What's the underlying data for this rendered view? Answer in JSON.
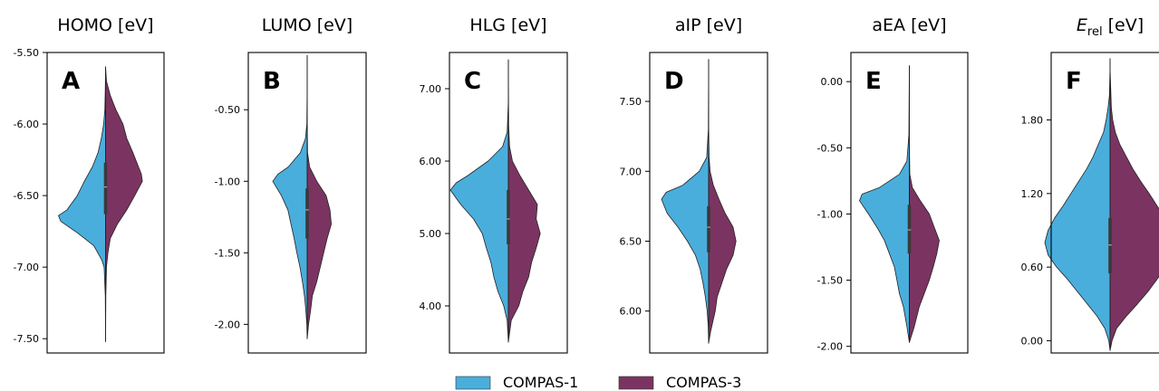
{
  "legend": {
    "placement": "bottom-center",
    "entries": [
      {
        "name": "COMPAS-1",
        "color": "#4aaedc"
      },
      {
        "name": "COMPAS-3",
        "color": "#7b3461"
      }
    ]
  },
  "chart_data": [
    {
      "type": "violin",
      "panel": "A",
      "title": "HOMO [eV]",
      "ylim": [
        -7.6,
        -5.5
      ],
      "yticks": [
        -5.5,
        -6.0,
        -6.5,
        -7.0,
        -7.5
      ],
      "yticklabels": [
        "-5.50",
        "-6.00",
        "-6.50",
        "-7.00",
        "-7.50"
      ],
      "median": -6.44,
      "iqr": [
        -6.63,
        -6.27
      ],
      "series": [
        {
          "name": "COMPAS-1",
          "profile": [
            [
              -7.52,
              0
            ],
            [
              -7.2,
              0.005
            ],
            [
              -7.0,
              0.03
            ],
            [
              -6.95,
              0.08
            ],
            [
              -6.85,
              0.25
            ],
            [
              -6.76,
              0.6
            ],
            [
              -6.68,
              0.95
            ],
            [
              -6.64,
              1.0
            ],
            [
              -6.6,
              0.82
            ],
            [
              -6.5,
              0.6
            ],
            [
              -6.4,
              0.45
            ],
            [
              -6.3,
              0.28
            ],
            [
              -6.2,
              0.16
            ],
            [
              -6.1,
              0.09
            ],
            [
              -6.0,
              0.04
            ],
            [
              -5.9,
              0.015
            ],
            [
              -5.75,
              0.005
            ],
            [
              -5.6,
              0
            ]
          ]
        },
        {
          "name": "COMPAS-3",
          "profile": [
            [
              -7.52,
              0
            ],
            [
              -7.2,
              0.005
            ],
            [
              -7.0,
              0.02
            ],
            [
              -6.9,
              0.05
            ],
            [
              -6.8,
              0.1
            ],
            [
              -6.7,
              0.25
            ],
            [
              -6.6,
              0.45
            ],
            [
              -6.5,
              0.62
            ],
            [
              -6.4,
              0.78
            ],
            [
              -6.35,
              0.76
            ],
            [
              -6.3,
              0.7
            ],
            [
              -6.2,
              0.58
            ],
            [
              -6.1,
              0.45
            ],
            [
              -6.0,
              0.37
            ],
            [
              -5.9,
              0.22
            ],
            [
              -5.8,
              0.1
            ],
            [
              -5.7,
              0.02
            ],
            [
              -5.6,
              0
            ]
          ]
        }
      ]
    },
    {
      "type": "violin",
      "panel": "B",
      "title": "LUMO [eV]",
      "ylim": [
        -2.2,
        -0.1
      ],
      "yticks": [
        -0.5,
        -1.0,
        -1.5,
        -2.0
      ],
      "yticklabels": [
        "-0.50",
        "-1.00",
        "-1.50",
        "-2.00"
      ],
      "median": -1.2,
      "iqr": [
        -1.4,
        -1.05
      ],
      "series": [
        {
          "name": "COMPAS-1",
          "profile": [
            [
              -2.1,
              0
            ],
            [
              -2.0,
              0.01
            ],
            [
              -1.9,
              0.04
            ],
            [
              -1.8,
              0.08
            ],
            [
              -1.7,
              0.14
            ],
            [
              -1.6,
              0.21
            ],
            [
              -1.5,
              0.3
            ],
            [
              -1.4,
              0.38
            ],
            [
              -1.3,
              0.47
            ],
            [
              -1.2,
              0.56
            ],
            [
              -1.1,
              0.75
            ],
            [
              -1.0,
              1.0
            ],
            [
              -0.95,
              0.85
            ],
            [
              -0.9,
              0.55
            ],
            [
              -0.8,
              0.2
            ],
            [
              -0.7,
              0.05
            ],
            [
              -0.6,
              0.01
            ],
            [
              -0.4,
              0.002
            ],
            [
              -0.12,
              0
            ]
          ]
        },
        {
          "name": "COMPAS-3",
          "profile": [
            [
              -2.1,
              0
            ],
            [
              -2.0,
              0.04
            ],
            [
              -1.9,
              0.1
            ],
            [
              -1.8,
              0.15
            ],
            [
              -1.7,
              0.28
            ],
            [
              -1.6,
              0.38
            ],
            [
              -1.5,
              0.48
            ],
            [
              -1.4,
              0.58
            ],
            [
              -1.3,
              0.7
            ],
            [
              -1.2,
              0.66
            ],
            [
              -1.1,
              0.55
            ],
            [
              -1.0,
              0.28
            ],
            [
              -0.9,
              0.07
            ],
            [
              -0.8,
              0.01
            ],
            [
              -0.6,
              0.002
            ],
            [
              -0.12,
              0
            ]
          ]
        }
      ]
    },
    {
      "type": "violin",
      "panel": "C",
      "title": "HLG [eV]",
      "ylim": [
        3.35,
        7.5
      ],
      "yticks": [
        7.0,
        6.0,
        5.0,
        4.0
      ],
      "yticklabels": [
        "7.00",
        "6.00",
        "5.00",
        "4.00"
      ],
      "median": 5.2,
      "iqr": [
        4.85,
        5.6
      ],
      "series": [
        {
          "name": "COMPAS-1",
          "profile": [
            [
              3.5,
              0
            ],
            [
              3.8,
              0.02
            ],
            [
              4.0,
              0.08
            ],
            [
              4.2,
              0.18
            ],
            [
              4.4,
              0.25
            ],
            [
              4.6,
              0.3
            ],
            [
              4.8,
              0.38
            ],
            [
              5.0,
              0.45
            ],
            [
              5.2,
              0.6
            ],
            [
              5.4,
              0.82
            ],
            [
              5.6,
              1.0
            ],
            [
              5.7,
              0.9
            ],
            [
              5.8,
              0.7
            ],
            [
              6.0,
              0.35
            ],
            [
              6.2,
              0.1
            ],
            [
              6.4,
              0.02
            ],
            [
              6.8,
              0.002
            ],
            [
              7.4,
              0
            ]
          ]
        },
        {
          "name": "COMPAS-3",
          "profile": [
            [
              3.5,
              0
            ],
            [
              3.8,
              0.05
            ],
            [
              4.0,
              0.18
            ],
            [
              4.2,
              0.25
            ],
            [
              4.4,
              0.35
            ],
            [
              4.6,
              0.4
            ],
            [
              4.8,
              0.48
            ],
            [
              5.0,
              0.55
            ],
            [
              5.2,
              0.48
            ],
            [
              5.4,
              0.5
            ],
            [
              5.6,
              0.35
            ],
            [
              5.8,
              0.2
            ],
            [
              6.0,
              0.07
            ],
            [
              6.2,
              0.02
            ],
            [
              6.5,
              0.005
            ],
            [
              7.4,
              0
            ]
          ]
        }
      ]
    },
    {
      "type": "violin",
      "panel": "D",
      "title": "aIP [eV]",
      "ylim": [
        5.7,
        7.85
      ],
      "yticks": [
        7.5,
        7.0,
        6.5,
        6.0
      ],
      "yticklabels": [
        "7.50",
        "7.00",
        "6.50",
        "6.00"
      ],
      "median": 6.6,
      "iqr": [
        6.42,
        6.75
      ],
      "series": [
        {
          "name": "COMPAS-1",
          "profile": [
            [
              5.77,
              0
            ],
            [
              5.9,
              0.01
            ],
            [
              6.0,
              0.03
            ],
            [
              6.1,
              0.07
            ],
            [
              6.2,
              0.12
            ],
            [
              6.3,
              0.18
            ],
            [
              6.4,
              0.28
            ],
            [
              6.5,
              0.45
            ],
            [
              6.6,
              0.65
            ],
            [
              6.7,
              0.88
            ],
            [
              6.8,
              1.0
            ],
            [
              6.85,
              0.9
            ],
            [
              6.9,
              0.55
            ],
            [
              7.0,
              0.2
            ],
            [
              7.1,
              0.04
            ],
            [
              7.3,
              0.005
            ],
            [
              7.8,
              0
            ]
          ]
        },
        {
          "name": "COMPAS-3",
          "profile": [
            [
              5.77,
              0
            ],
            [
              5.85,
              0.04
            ],
            [
              6.0,
              0.14
            ],
            [
              6.1,
              0.18
            ],
            [
              6.2,
              0.28
            ],
            [
              6.3,
              0.38
            ],
            [
              6.4,
              0.52
            ],
            [
              6.5,
              0.58
            ],
            [
              6.6,
              0.52
            ],
            [
              6.7,
              0.35
            ],
            [
              6.8,
              0.22
            ],
            [
              6.9,
              0.1
            ],
            [
              7.0,
              0.03
            ],
            [
              7.1,
              0.01
            ],
            [
              7.3,
              0.002
            ],
            [
              7.8,
              0
            ]
          ]
        }
      ]
    },
    {
      "type": "violin",
      "panel": "E",
      "title": "aEA [eV]",
      "ylim": [
        -2.05,
        0.22
      ],
      "yticks": [
        0.0,
        -0.5,
        -1.0,
        -1.5,
        -2.0
      ],
      "yticklabels": [
        "0.00",
        "-0.50",
        "-1.00",
        "-1.50",
        "-2.00"
      ],
      "median": -1.12,
      "iqr": [
        -1.3,
        -0.93
      ],
      "series": [
        {
          "name": "COMPAS-1",
          "profile": [
            [
              -1.97,
              0
            ],
            [
              -1.85,
              0.05
            ],
            [
              -1.7,
              0.12
            ],
            [
              -1.6,
              0.2
            ],
            [
              -1.5,
              0.25
            ],
            [
              -1.4,
              0.3
            ],
            [
              -1.3,
              0.4
            ],
            [
              -1.2,
              0.5
            ],
            [
              -1.1,
              0.65
            ],
            [
              -1.0,
              0.82
            ],
            [
              -0.9,
              1.0
            ],
            [
              -0.85,
              0.95
            ],
            [
              -0.8,
              0.6
            ],
            [
              -0.7,
              0.2
            ],
            [
              -0.6,
              0.05
            ],
            [
              -0.4,
              0.01
            ],
            [
              0.12,
              0
            ]
          ]
        },
        {
          "name": "COMPAS-3",
          "profile": [
            [
              -1.97,
              0
            ],
            [
              -1.85,
              0.1
            ],
            [
              -1.7,
              0.2
            ],
            [
              -1.6,
              0.3
            ],
            [
              -1.5,
              0.4
            ],
            [
              -1.4,
              0.48
            ],
            [
              -1.3,
              0.55
            ],
            [
              -1.2,
              0.6
            ],
            [
              -1.1,
              0.5
            ],
            [
              -1.0,
              0.4
            ],
            [
              -0.9,
              0.22
            ],
            [
              -0.8,
              0.06
            ],
            [
              -0.7,
              0.01
            ],
            [
              -0.5,
              0.002
            ],
            [
              0.12,
              0
            ]
          ]
        }
      ]
    },
    {
      "type": "violin",
      "panel": "F",
      "title": "E_rel [eV]",
      "ylim": [
        -0.1,
        2.35
      ],
      "yticks": [
        1.8,
        1.2,
        0.6,
        0.0
      ],
      "yticklabels": [
        "1.80",
        "1.20",
        "0.60",
        "0.00"
      ],
      "median": 0.78,
      "iqr": [
        0.55,
        1.0
      ],
      "series": [
        {
          "name": "COMPAS-1",
          "profile": [
            [
              -0.08,
              0
            ],
            [
              0.0,
              0.02
            ],
            [
              0.1,
              0.08
            ],
            [
              0.2,
              0.2
            ],
            [
              0.3,
              0.35
            ],
            [
              0.4,
              0.5
            ],
            [
              0.5,
              0.65
            ],
            [
              0.6,
              0.82
            ],
            [
              0.7,
              0.95
            ],
            [
              0.8,
              1.0
            ],
            [
              0.9,
              0.95
            ],
            [
              1.0,
              0.85
            ],
            [
              1.1,
              0.72
            ],
            [
              1.2,
              0.6
            ],
            [
              1.3,
              0.48
            ],
            [
              1.4,
              0.36
            ],
            [
              1.5,
              0.26
            ],
            [
              1.6,
              0.18
            ],
            [
              1.7,
              0.1
            ],
            [
              1.8,
              0.06
            ],
            [
              1.9,
              0.03
            ],
            [
              2.0,
              0.01
            ],
            [
              2.2,
              0.002
            ],
            [
              2.3,
              0
            ]
          ]
        },
        {
          "name": "COMPAS-3",
          "profile": [
            [
              -0.08,
              0
            ],
            [
              0.0,
              0.03
            ],
            [
              0.1,
              0.1
            ],
            [
              0.2,
              0.25
            ],
            [
              0.3,
              0.42
            ],
            [
              0.4,
              0.58
            ],
            [
              0.5,
              0.72
            ],
            [
              0.6,
              0.85
            ],
            [
              0.7,
              0.95
            ],
            [
              0.8,
              1.0
            ],
            [
              0.9,
              0.95
            ],
            [
              1.0,
              0.85
            ],
            [
              1.1,
              0.72
            ],
            [
              1.2,
              0.6
            ],
            [
              1.3,
              0.47
            ],
            [
              1.4,
              0.35
            ],
            [
              1.5,
              0.25
            ],
            [
              1.6,
              0.15
            ],
            [
              1.7,
              0.08
            ],
            [
              1.8,
              0.04
            ],
            [
              1.9,
              0.02
            ],
            [
              2.2,
              0.002
            ],
            [
              2.3,
              0
            ]
          ]
        }
      ]
    }
  ]
}
